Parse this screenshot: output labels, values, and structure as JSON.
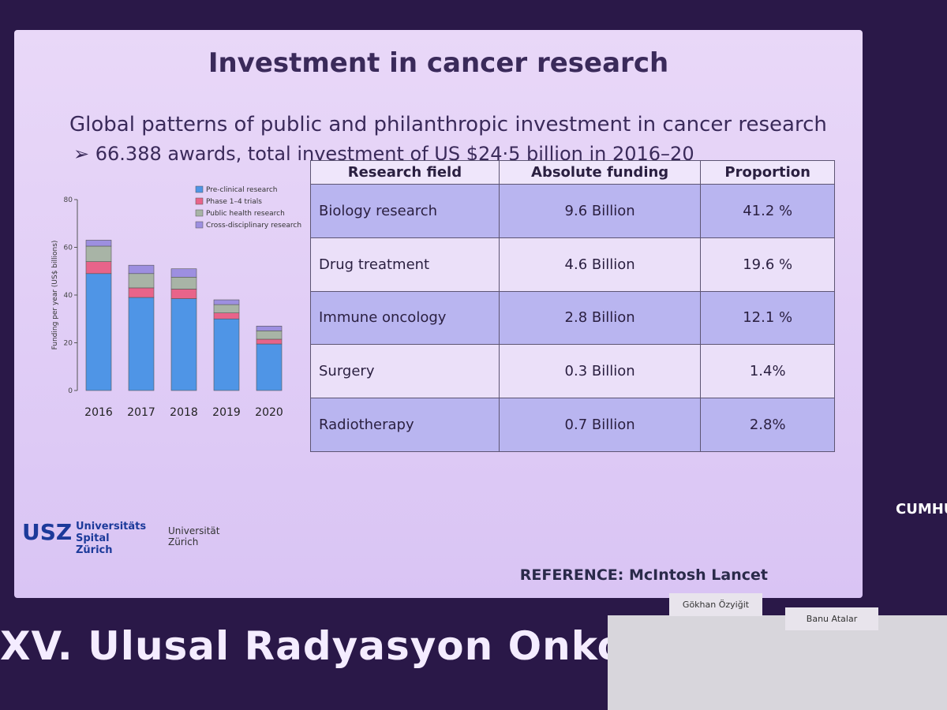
{
  "slide": {
    "title": "Investment in cancer research",
    "subtitle": "Global patterns of public and philanthropic investment in cancer research",
    "bullet": "66.388 awards, total investment of US $24·5 billion in 2016–20",
    "reference": "REFERENCE: McIntosh Lancet",
    "logo_usz": "USZ",
    "logo_usz_name": "Universitäts Spital Zürich",
    "logo_uzh": "Universität Zürich"
  },
  "chart_data": {
    "type": "stacked-bar",
    "y_label": "Funding per year (US$ billions)",
    "categories": [
      "2016",
      "2017",
      "2018",
      "2019",
      "2020"
    ],
    "series": [
      {
        "name": "Pre-clinical research",
        "color": "#4f95e6",
        "values": [
          49,
          39,
          38.5,
          30,
          19.5
        ]
      },
      {
        "name": "Phase 1–4 trials",
        "color": "#e8648a",
        "values": [
          5,
          4,
          4,
          2.5,
          2
        ]
      },
      {
        "name": "Public health research",
        "color": "#a8b4a6",
        "values": [
          6.5,
          6,
          5,
          3.5,
          3.5
        ]
      },
      {
        "name": "Cross-disciplinary research",
        "color": "#9d8fe0",
        "values": [
          2.5,
          3.5,
          3.5,
          2,
          2
        ]
      }
    ],
    "ylim": [
      0,
      80
    ],
    "yticks": [
      0,
      20,
      40,
      60,
      80
    ]
  },
  "table": {
    "header": [
      "Research field",
      "Absolute funding",
      "Proportion"
    ],
    "rows": [
      [
        "Biology research",
        "9.6 Billion",
        "41.2 %"
      ],
      [
        "Drug treatment",
        "4.6 Billion",
        "19.6 %"
      ],
      [
        "Immune oncology",
        "2.8 Billion",
        "12.1 %"
      ],
      [
        "Surgery",
        "0.3 Billion",
        "1.4%"
      ],
      [
        "Radiotherapy",
        "0.7 Billion",
        "2.8%"
      ]
    ]
  },
  "venue": {
    "banner": "XV. Ulusal Radyasyon Onkolojisi",
    "side_text": "CUMHU",
    "nameplates": [
      "Gökhan Özyiğit",
      "Banu Atalar"
    ]
  }
}
